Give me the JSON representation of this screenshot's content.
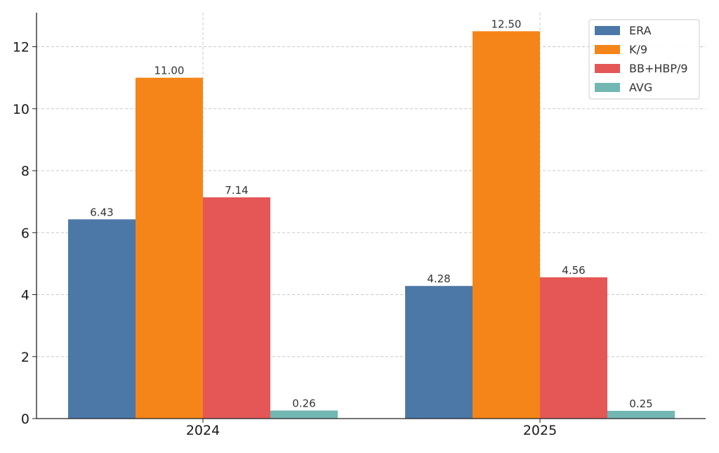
{
  "chart_data": {
    "type": "bar",
    "categories": [
      "2024",
      "2025"
    ],
    "series": [
      {
        "name": "ERA",
        "values": [
          6.43,
          4.28
        ],
        "labels": [
          "6.43",
          "4.28"
        ],
        "color": "#4c78a8"
      },
      {
        "name": "K/9",
        "values": [
          11.0,
          12.5
        ],
        "labels": [
          "11.00",
          "12.50"
        ],
        "color": "#f58518"
      },
      {
        "name": "BB+HBP/9",
        "values": [
          7.14,
          4.56
        ],
        "labels": [
          "7.14",
          "4.56"
        ],
        "color": "#e45756"
      },
      {
        "name": "AVG",
        "values": [
          0.26,
          0.25
        ],
        "labels": [
          "0.26",
          "0.25"
        ],
        "color": "#72b7b2"
      }
    ],
    "y_ticks": [
      "0",
      "2",
      "4",
      "6",
      "8",
      "10",
      "12"
    ],
    "ylim": [
      0,
      13.1
    ],
    "grid": true,
    "legend_position": "top-right",
    "title": "",
    "xlabel": "",
    "ylabel": ""
  }
}
